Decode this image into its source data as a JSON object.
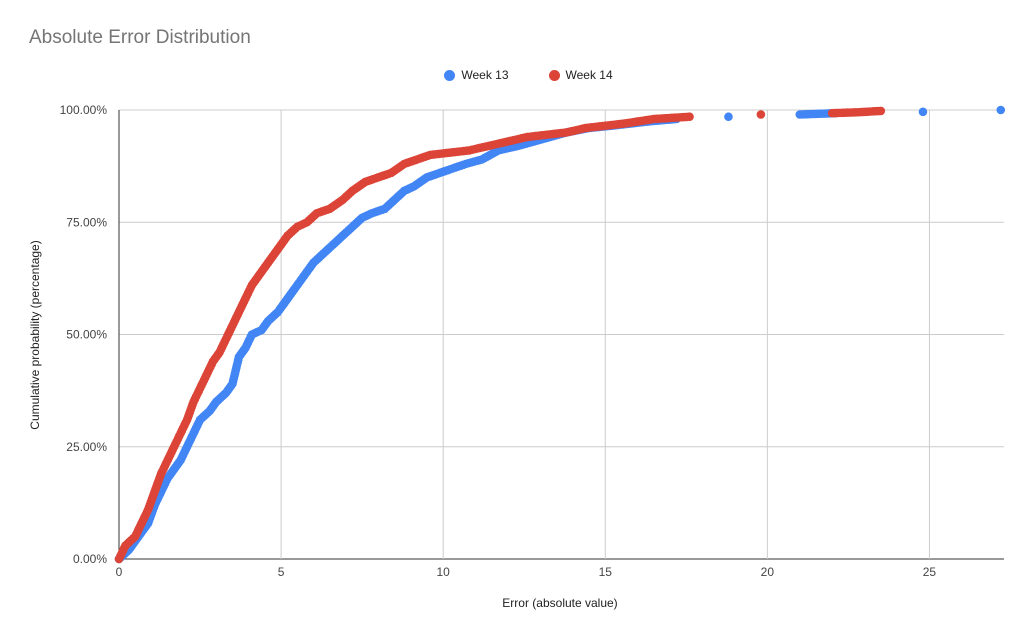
{
  "chart_data": {
    "type": "scatter",
    "title": "Absolute Error Distribution",
    "xlabel": "Error (absolute value)",
    "ylabel": "Cumulative probability (percentage)",
    "xlim": [
      0,
      27.3
    ],
    "ylim": [
      0,
      100
    ],
    "x_ticks": [
      "0",
      "5",
      "10",
      "15",
      "20",
      "25"
    ],
    "y_ticks": [
      "0.00%",
      "25.00%",
      "50.00%",
      "75.00%",
      "100.00%"
    ],
    "grid": true,
    "legend_position": "top",
    "series": [
      {
        "name": "Week 13",
        "color": "#4285f4",
        "points": [
          [
            0,
            0
          ],
          [
            0.3,
            2
          ],
          [
            0.6,
            5
          ],
          [
            0.9,
            8
          ],
          [
            1.1,
            12
          ],
          [
            1.3,
            15
          ],
          [
            1.5,
            18
          ],
          [
            1.7,
            20
          ],
          [
            1.9,
            22
          ],
          [
            2.1,
            25
          ],
          [
            2.3,
            28
          ],
          [
            2.5,
            31
          ],
          [
            2.8,
            33
          ],
          [
            3.0,
            35
          ],
          [
            3.3,
            37
          ],
          [
            3.5,
            39
          ],
          [
            3.6,
            42
          ],
          [
            3.7,
            45
          ],
          [
            3.9,
            47
          ],
          [
            4.1,
            50
          ],
          [
            4.4,
            51
          ],
          [
            4.6,
            53
          ],
          [
            4.9,
            55
          ],
          [
            5.2,
            58
          ],
          [
            5.5,
            61
          ],
          [
            5.8,
            64
          ],
          [
            6.0,
            66
          ],
          [
            6.3,
            68
          ],
          [
            6.6,
            70
          ],
          [
            6.9,
            72
          ],
          [
            7.2,
            74
          ],
          [
            7.5,
            76
          ],
          [
            7.8,
            77
          ],
          [
            8.2,
            78
          ],
          [
            8.5,
            80
          ],
          [
            8.8,
            82
          ],
          [
            9.1,
            83
          ],
          [
            9.5,
            85
          ],
          [
            9.9,
            86
          ],
          [
            10.3,
            87
          ],
          [
            10.7,
            88
          ],
          [
            11.2,
            89
          ],
          [
            11.7,
            91
          ],
          [
            12.3,
            92
          ],
          [
            12.8,
            93
          ],
          [
            13.3,
            94
          ],
          [
            13.8,
            95
          ],
          [
            14.5,
            96
          ],
          [
            15.2,
            96.5
          ],
          [
            15.8,
            97
          ],
          [
            16.4,
            97.5
          ],
          [
            17.2,
            98
          ],
          [
            18.8,
            98.5
          ],
          [
            21.0,
            99
          ],
          [
            22.1,
            99.3
          ],
          [
            24.8,
            99.6
          ],
          [
            27.2,
            100
          ]
        ]
      },
      {
        "name": "Week 14",
        "color": "#db4437",
        "points": [
          [
            0,
            0
          ],
          [
            0.2,
            3
          ],
          [
            0.5,
            5
          ],
          [
            0.7,
            8
          ],
          [
            0.9,
            11
          ],
          [
            1.1,
            15
          ],
          [
            1.3,
            19
          ],
          [
            1.5,
            22
          ],
          [
            1.7,
            25
          ],
          [
            1.9,
            28
          ],
          [
            2.1,
            31
          ],
          [
            2.3,
            35
          ],
          [
            2.5,
            38
          ],
          [
            2.7,
            41
          ],
          [
            2.9,
            44
          ],
          [
            3.1,
            46
          ],
          [
            3.3,
            49
          ],
          [
            3.5,
            52
          ],
          [
            3.7,
            55
          ],
          [
            3.9,
            58
          ],
          [
            4.1,
            61
          ],
          [
            4.3,
            63
          ],
          [
            4.6,
            66
          ],
          [
            4.9,
            69
          ],
          [
            5.2,
            72
          ],
          [
            5.5,
            74
          ],
          [
            5.8,
            75
          ],
          [
            6.1,
            77
          ],
          [
            6.5,
            78
          ],
          [
            6.9,
            80
          ],
          [
            7.2,
            82
          ],
          [
            7.6,
            84
          ],
          [
            8.0,
            85
          ],
          [
            8.4,
            86
          ],
          [
            8.8,
            88
          ],
          [
            9.2,
            89
          ],
          [
            9.6,
            90
          ],
          [
            10.2,
            90.5
          ],
          [
            10.8,
            91
          ],
          [
            11.4,
            92
          ],
          [
            12.0,
            93
          ],
          [
            12.6,
            94
          ],
          [
            13.2,
            94.5
          ],
          [
            13.8,
            95
          ],
          [
            14.4,
            96
          ],
          [
            15.0,
            96.5
          ],
          [
            15.6,
            97
          ],
          [
            16.5,
            98
          ],
          [
            17.6,
            98.5
          ],
          [
            19.8,
            99
          ],
          [
            22.0,
            99.3
          ],
          [
            22.8,
            99.5
          ],
          [
            23.5,
            99.8
          ]
        ]
      }
    ]
  }
}
